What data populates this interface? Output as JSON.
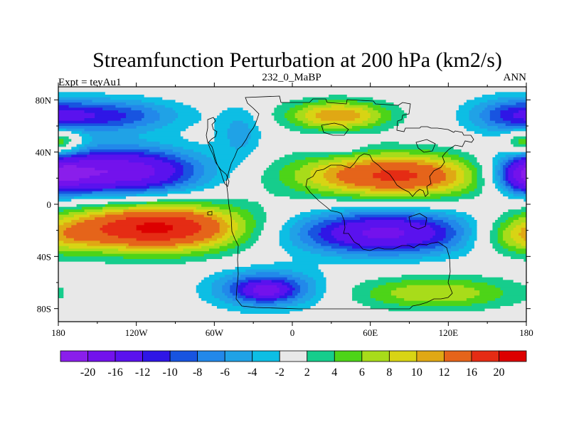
{
  "chart_data": {
    "type": "heatmap",
    "title": "Streamfunction Perturbation at 200 hPa (km2/s)",
    "left_label": "Expt = teyAu1",
    "center_label": "232_0_MaBP",
    "right_label": "ANN",
    "x_tick_labels": [
      "180",
      "120W",
      "60W",
      "0",
      "60E",
      "120E",
      "180"
    ],
    "x_ticks": [
      -180,
      -120,
      -60,
      0,
      60,
      120,
      180
    ],
    "y_tick_labels": [
      "80N",
      "40N",
      "0",
      "40S",
      "80S"
    ],
    "y_ticks": [
      80,
      40,
      0,
      -40,
      -80
    ],
    "xlim": [
      -180,
      180
    ],
    "ylim": [
      -90,
      90
    ],
    "colorbar_levels": [
      "-20",
      "-16",
      "-12",
      "-10",
      "-8",
      "-6",
      "-4",
      "-2",
      "2",
      "4",
      "6",
      "8",
      "10",
      "12",
      "16",
      "20"
    ],
    "level_values": [
      -20,
      -16,
      -12,
      -10,
      -8,
      -6,
      -4,
      -2,
      2,
      4,
      6,
      8,
      10,
      12,
      16,
      20
    ],
    "colors": [
      "#8a1eeb",
      "#7312ec",
      "#5a12ee",
      "#2f16e6",
      "#1854e0",
      "#2288ea",
      "#20a2e6",
      "#0dbee4",
      "#e8e8e8",
      "#16cd8c",
      "#4dd418",
      "#a8dc1a",
      "#d8d414",
      "#e0a814",
      "#e5641a",
      "#e52c14",
      "#dd0000"
    ],
    "anomaly_centers": [
      {
        "lon": -135,
        "lat": 25,
        "value": -20,
        "sx": 45,
        "sy": 13
      },
      {
        "lon": -105,
        "lat": -18,
        "value": 21,
        "sx": 50,
        "sy": 13
      },
      {
        "lon": 80,
        "lat": 22,
        "value": 17,
        "sx": 55,
        "sy": 12
      },
      {
        "lon": 70,
        "lat": -22,
        "value": -17,
        "sx": 52,
        "sy": 12
      },
      {
        "lon": 35,
        "lat": 68,
        "value": 12,
        "sx": 28,
        "sy": 8
      },
      {
        "lon": -140,
        "lat": 68,
        "value": -10,
        "sx": 38,
        "sy": 9
      },
      {
        "lon": -20,
        "lat": -65,
        "value": -13,
        "sx": 28,
        "sy": 10
      },
      {
        "lon": -20,
        "lat": -66,
        "value": -7,
        "sx": 10,
        "sy": 4
      },
      {
        "lon": 180,
        "lat": 22,
        "value": -10,
        "sx": 18,
        "sy": 10
      },
      {
        "lon": -180,
        "lat": 22,
        "value": -4,
        "sx": 10,
        "sy": 8
      },
      {
        "lon": 170,
        "lat": 68,
        "value": -8,
        "sx": 25,
        "sy": 10
      },
      {
        "lon": 175,
        "lat": -25,
        "value": 7,
        "sx": 25,
        "sy": 10
      },
      {
        "lon": 110,
        "lat": -68,
        "value": 8,
        "sx": 45,
        "sy": 9
      },
      {
        "lon": -180,
        "lat": 48,
        "value": 9,
        "sx": 12,
        "sy": 7
      },
      {
        "lon": 35,
        "lat": 45,
        "value": -4,
        "sx": 12,
        "sy": 5
      },
      {
        "lon": -40,
        "lat": 55,
        "value": -5,
        "sx": 12,
        "sy": 14
      }
    ]
  }
}
